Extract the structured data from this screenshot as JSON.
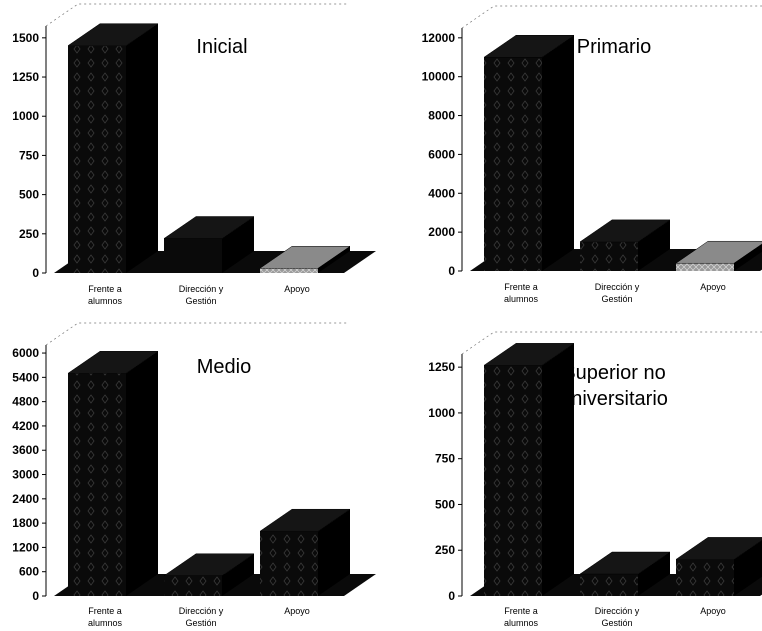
{
  "charts": [
    {
      "title_lines": [
        "Inicial"
      ],
      "chart_data": {
        "type": "bar",
        "title": "Inicial",
        "categories": [
          [
            "Frente a",
            "alumnos"
          ],
          [
            "Dirección y",
            "Gestión"
          ],
          [
            "Apoyo",
            ""
          ]
        ],
        "values": [
          1450,
          220,
          30
        ],
        "yticks": [
          0,
          250,
          500,
          750,
          1000,
          1250,
          1500
        ],
        "ylim": [
          0,
          1550
        ],
        "colors": [
          "#0a0a0a",
          "#0a0a0a",
          "#8a8a8a"
        ]
      }
    },
    {
      "title_lines": [
        "Primario"
      ],
      "chart_data": {
        "type": "bar",
        "title": "Primario",
        "categories": [
          [
            "Frente a",
            "alumnos"
          ],
          [
            "Dirección y",
            "Gestión"
          ],
          [
            "Apoyo",
            ""
          ]
        ],
        "values": [
          11000,
          1500,
          400
        ],
        "yticks": [
          0,
          2000,
          4000,
          6000,
          8000,
          10000,
          12000
        ],
        "ylim": [
          0,
          12300
        ],
        "colors": [
          "#0a0a0a",
          "#0a0a0a",
          "#8a8a8a"
        ]
      }
    },
    {
      "title_lines": [
        "Medio"
      ],
      "chart_data": {
        "type": "bar",
        "title": "Medio",
        "categories": [
          [
            "Frente a",
            "alumnos"
          ],
          [
            "Dirección y",
            "Gestión"
          ],
          [
            "Apoyo",
            ""
          ]
        ],
        "values": [
          5500,
          500,
          1600
        ],
        "yticks": [
          0,
          600,
          1200,
          1800,
          2400,
          3000,
          3600,
          4200,
          4800,
          5400,
          6000
        ],
        "ylim": [
          0,
          6100
        ],
        "colors": [
          "#0a0a0a",
          "#0a0a0a",
          "#0a0a0a"
        ]
      }
    },
    {
      "title_lines": [
        "Superior no",
        "universitario"
      ],
      "chart_data": {
        "type": "bar",
        "title": "Superior no universitario",
        "categories": [
          [
            "Frente a",
            "alumnos"
          ],
          [
            "Dirección y",
            "Gestión"
          ],
          [
            "Apoyo",
            ""
          ]
        ],
        "values": [
          1260,
          120,
          200
        ],
        "yticks": [
          0,
          250,
          500,
          750,
          1000,
          1250
        ],
        "ylim": [
          0,
          1300
        ],
        "colors": [
          "#0a0a0a",
          "#0a0a0a",
          "#0a0a0a"
        ]
      }
    }
  ]
}
